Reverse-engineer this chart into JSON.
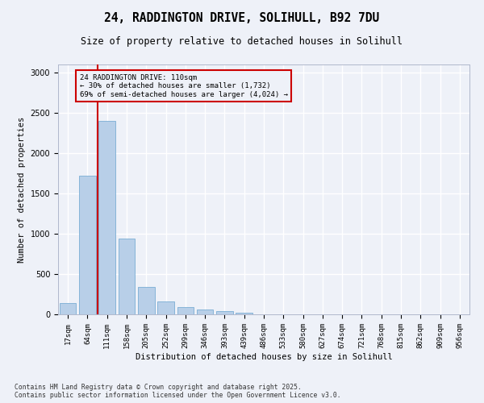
{
  "title_line1": "24, RADDINGTON DRIVE, SOLIHULL, B92 7DU",
  "title_line2": "Size of property relative to detached houses in Solihull",
  "xlabel": "Distribution of detached houses by size in Solihull",
  "ylabel": "Number of detached properties",
  "categories": [
    "17sqm",
    "64sqm",
    "111sqm",
    "158sqm",
    "205sqm",
    "252sqm",
    "299sqm",
    "346sqm",
    "393sqm",
    "439sqm",
    "486sqm",
    "533sqm",
    "580sqm",
    "627sqm",
    "674sqm",
    "721sqm",
    "768sqm",
    "815sqm",
    "862sqm",
    "909sqm",
    "956sqm"
  ],
  "values": [
    140,
    1720,
    2400,
    940,
    340,
    160,
    90,
    60,
    40,
    25,
    5,
    0,
    0,
    0,
    0,
    0,
    0,
    0,
    0,
    0,
    0
  ],
  "bar_color": "#b8cfe8",
  "bar_edge_color": "#7aadd4",
  "vline_color": "#cc0000",
  "vline_x": 1.5,
  "annotation_text_line1": "24 RADDINGTON DRIVE: 110sqm",
  "annotation_text_line2": "← 30% of detached houses are smaller (1,732)",
  "annotation_text_line3": "69% of semi-detached houses are larger (4,024) →",
  "annotation_box_edgecolor": "#cc0000",
  "ylim": [
    0,
    3100
  ],
  "yticks": [
    0,
    500,
    1000,
    1500,
    2000,
    2500,
    3000
  ],
  "bg_color": "#eef1f8",
  "grid_color": "#ffffff",
  "footnote1": "Contains HM Land Registry data © Crown copyright and database right 2025.",
  "footnote2": "Contains public sector information licensed under the Open Government Licence v3.0."
}
